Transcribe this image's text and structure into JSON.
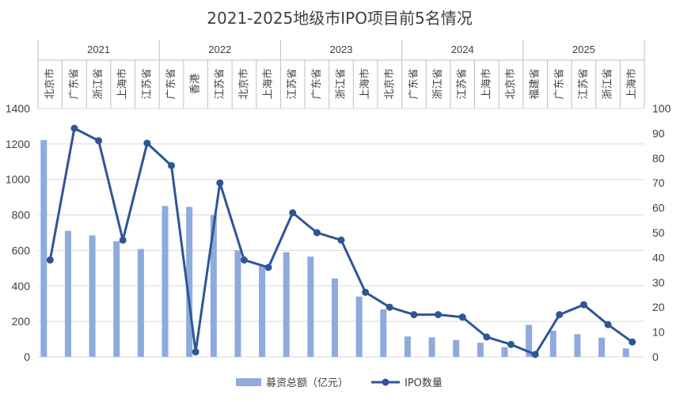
{
  "chart_data": {
    "type": "bar",
    "title": "2021-2025地级市IPO项目前5名情况",
    "groups": [
      {
        "label": "2021",
        "categories": [
          "北京市",
          "广东省",
          "浙江省",
          "上海市",
          "江苏省"
        ]
      },
      {
        "label": "2022",
        "categories": [
          "广东省",
          "香港",
          "江苏省",
          "北京市",
          "上海市"
        ]
      },
      {
        "label": "2023",
        "categories": [
          "江苏省",
          "广东省",
          "浙江省",
          "上海市",
          "北京市"
        ]
      },
      {
        "label": "2024",
        "categories": [
          "广东省",
          "浙江省",
          "江苏省",
          "上海市",
          "北京市"
        ]
      },
      {
        "label": "2025",
        "categories": [
          "福建省",
          "广东省",
          "江苏省",
          "浙江省",
          "上海市"
        ]
      }
    ],
    "series": [
      {
        "name": "募资总额（亿元）",
        "type": "bar",
        "axis": "left",
        "color": "#8faadc",
        "values": [
          1222,
          710,
          685,
          652,
          608,
          850,
          845,
          798,
          600,
          515,
          590,
          565,
          442,
          340,
          268,
          115,
          110,
          95,
          80,
          55,
          180,
          148,
          128,
          108,
          48
        ]
      },
      {
        "name": "IPO数量",
        "type": "line",
        "axis": "right",
        "color": "#2f5597",
        "values": [
          39,
          92,
          87,
          47,
          86,
          77,
          2,
          70,
          39,
          36,
          58,
          50,
          47,
          26,
          20,
          17,
          17,
          16,
          8,
          5,
          1,
          17,
          21,
          13,
          6
        ]
      }
    ],
    "y_left": {
      "min": 0,
      "max": 1400,
      "ticks": [
        "0",
        "200",
        "400",
        "600",
        "800",
        "1000",
        "1200",
        "1400"
      ]
    },
    "y_right": {
      "min": 0,
      "max": 100,
      "ticks": [
        "0",
        "10",
        "20",
        "30",
        "40",
        "50",
        "60",
        "70",
        "80",
        "90",
        "100"
      ]
    },
    "grid": true,
    "legend": "bottom"
  }
}
